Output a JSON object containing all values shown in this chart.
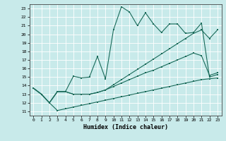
{
  "title": "",
  "xlabel": "Humidex (Indice chaleur)",
  "xlim": [
    -0.5,
    23.5
  ],
  "ylim": [
    10.5,
    23.5
  ],
  "yticks": [
    11,
    12,
    13,
    14,
    15,
    16,
    17,
    18,
    19,
    20,
    21,
    22,
    23
  ],
  "xticks": [
    0,
    1,
    2,
    3,
    4,
    5,
    6,
    7,
    8,
    9,
    10,
    11,
    12,
    13,
    14,
    15,
    16,
    17,
    18,
    19,
    20,
    21,
    22,
    23
  ],
  "bg_color": "#c8eaea",
  "grid_color": "#ffffff",
  "line_color": "#1a6b5a",
  "line1_x": [
    0,
    1,
    2,
    3,
    4,
    5,
    6,
    7,
    8,
    9,
    10,
    11,
    12,
    13,
    14,
    15,
    16,
    17,
    18,
    19,
    20,
    21,
    22,
    23
  ],
  "line1_y": [
    13.7,
    13.0,
    12.0,
    11.1,
    11.3,
    11.5,
    11.7,
    11.9,
    12.1,
    12.3,
    12.5,
    12.7,
    12.9,
    13.1,
    13.3,
    13.5,
    13.7,
    13.9,
    14.1,
    14.3,
    14.5,
    14.7,
    14.8,
    14.9
  ],
  "line2_x": [
    0,
    1,
    2,
    3,
    4,
    5,
    6,
    7,
    8,
    9,
    10,
    11,
    12,
    13,
    14,
    15,
    16,
    17,
    18,
    19,
    20,
    21,
    22,
    23
  ],
  "line2_y": [
    13.7,
    13.0,
    12.0,
    13.3,
    13.3,
    13.0,
    13.0,
    13.0,
    13.2,
    13.5,
    13.9,
    14.3,
    14.7,
    15.1,
    15.5,
    15.8,
    16.2,
    16.6,
    17.0,
    17.4,
    17.8,
    17.5,
    15.2,
    15.5
  ],
  "line3_x": [
    0,
    1,
    2,
    3,
    4,
    5,
    6,
    7,
    8,
    9,
    10,
    11,
    12,
    13,
    14,
    15,
    16,
    17,
    18,
    19,
    20,
    21,
    22,
    23
  ],
  "line3_y": [
    13.7,
    13.0,
    12.0,
    13.3,
    13.3,
    15.1,
    14.9,
    15.0,
    17.4,
    14.8,
    20.5,
    23.2,
    22.6,
    21.0,
    22.5,
    21.2,
    20.2,
    21.2,
    21.2,
    20.1,
    20.2,
    21.3,
    15.0,
    15.3
  ],
  "line4_x": [
    0,
    1,
    2,
    3,
    4,
    5,
    6,
    7,
    8,
    9,
    10,
    11,
    12,
    13,
    14,
    15,
    16,
    17,
    18,
    19,
    20,
    21,
    22,
    23
  ],
  "line4_y": [
    13.7,
    13.0,
    12.0,
    13.3,
    13.3,
    13.0,
    13.0,
    13.0,
    13.2,
    13.5,
    14.1,
    14.7,
    15.3,
    15.9,
    16.5,
    17.1,
    17.7,
    18.3,
    18.9,
    19.5,
    20.1,
    20.5,
    19.5,
    20.5
  ]
}
